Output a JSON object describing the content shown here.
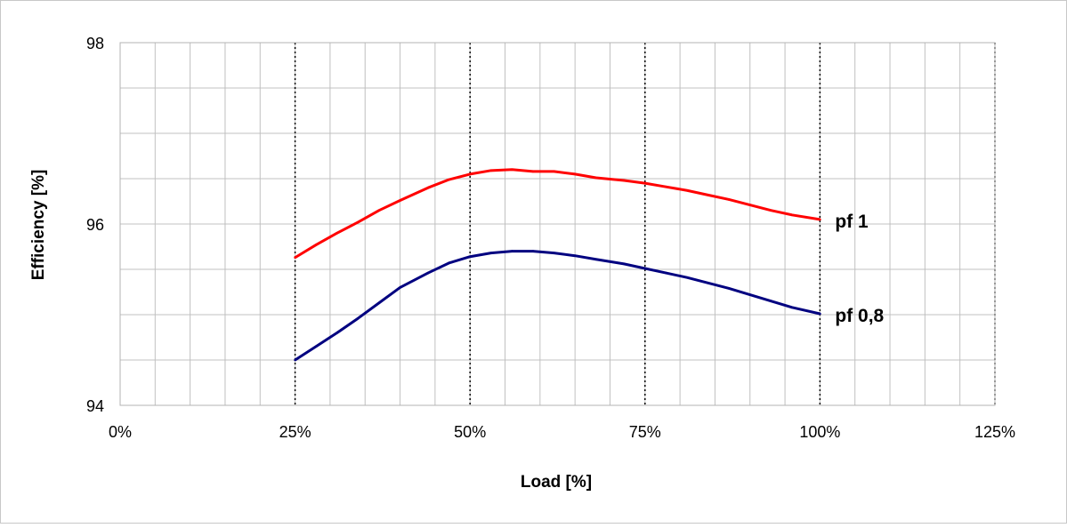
{
  "chart_data": {
    "type": "line",
    "xlabel": "Load [%]",
    "ylabel": "Efficiency [%]",
    "xlim": [
      0,
      125
    ],
    "ylim": [
      94,
      98
    ],
    "x_ticks": [
      {
        "value": 0,
        "label": "0%"
      },
      {
        "value": 25,
        "label": "25%"
      },
      {
        "value": 50,
        "label": "50%"
      },
      {
        "value": 75,
        "label": "75%"
      },
      {
        "value": 100,
        "label": "100%"
      },
      {
        "value": 125,
        "label": "125%"
      }
    ],
    "y_ticks": [
      {
        "value": 94,
        "label": "94"
      },
      {
        "value": 96,
        "label": "96"
      },
      {
        "value": 98,
        "label": "98"
      }
    ],
    "grid": true,
    "dotted_vertical_markers": [
      25,
      50,
      75,
      100,
      125
    ],
    "series": [
      {
        "name": "pf 1",
        "color": "#ff0000",
        "x": [
          25,
          28,
          31,
          34,
          37,
          40,
          44,
          47,
          50,
          53,
          56,
          59,
          62,
          65,
          68,
          72,
          75,
          78,
          81,
          84,
          87,
          90,
          93,
          96,
          100
        ],
        "y": [
          95.63,
          95.77,
          95.9,
          96.02,
          96.15,
          96.26,
          96.4,
          96.49,
          96.55,
          96.59,
          96.6,
          96.58,
          96.58,
          96.55,
          96.51,
          96.48,
          96.45,
          96.41,
          96.37,
          96.32,
          96.27,
          96.21,
          96.15,
          96.1,
          96.05
        ]
      },
      {
        "name": "pf 0,8",
        "color": "#000080",
        "x": [
          25,
          28,
          31,
          34,
          37,
          40,
          44,
          47,
          50,
          53,
          56,
          59,
          62,
          65,
          68,
          72,
          75,
          78,
          81,
          84,
          87,
          90,
          93,
          96,
          100
        ],
        "y": [
          94.5,
          94.65,
          94.8,
          94.96,
          95.13,
          95.3,
          95.46,
          95.57,
          95.64,
          95.68,
          95.7,
          95.7,
          95.68,
          95.65,
          95.61,
          95.56,
          95.51,
          95.46,
          95.41,
          95.35,
          95.29,
          95.22,
          95.15,
          95.08,
          95.01
        ]
      }
    ]
  }
}
